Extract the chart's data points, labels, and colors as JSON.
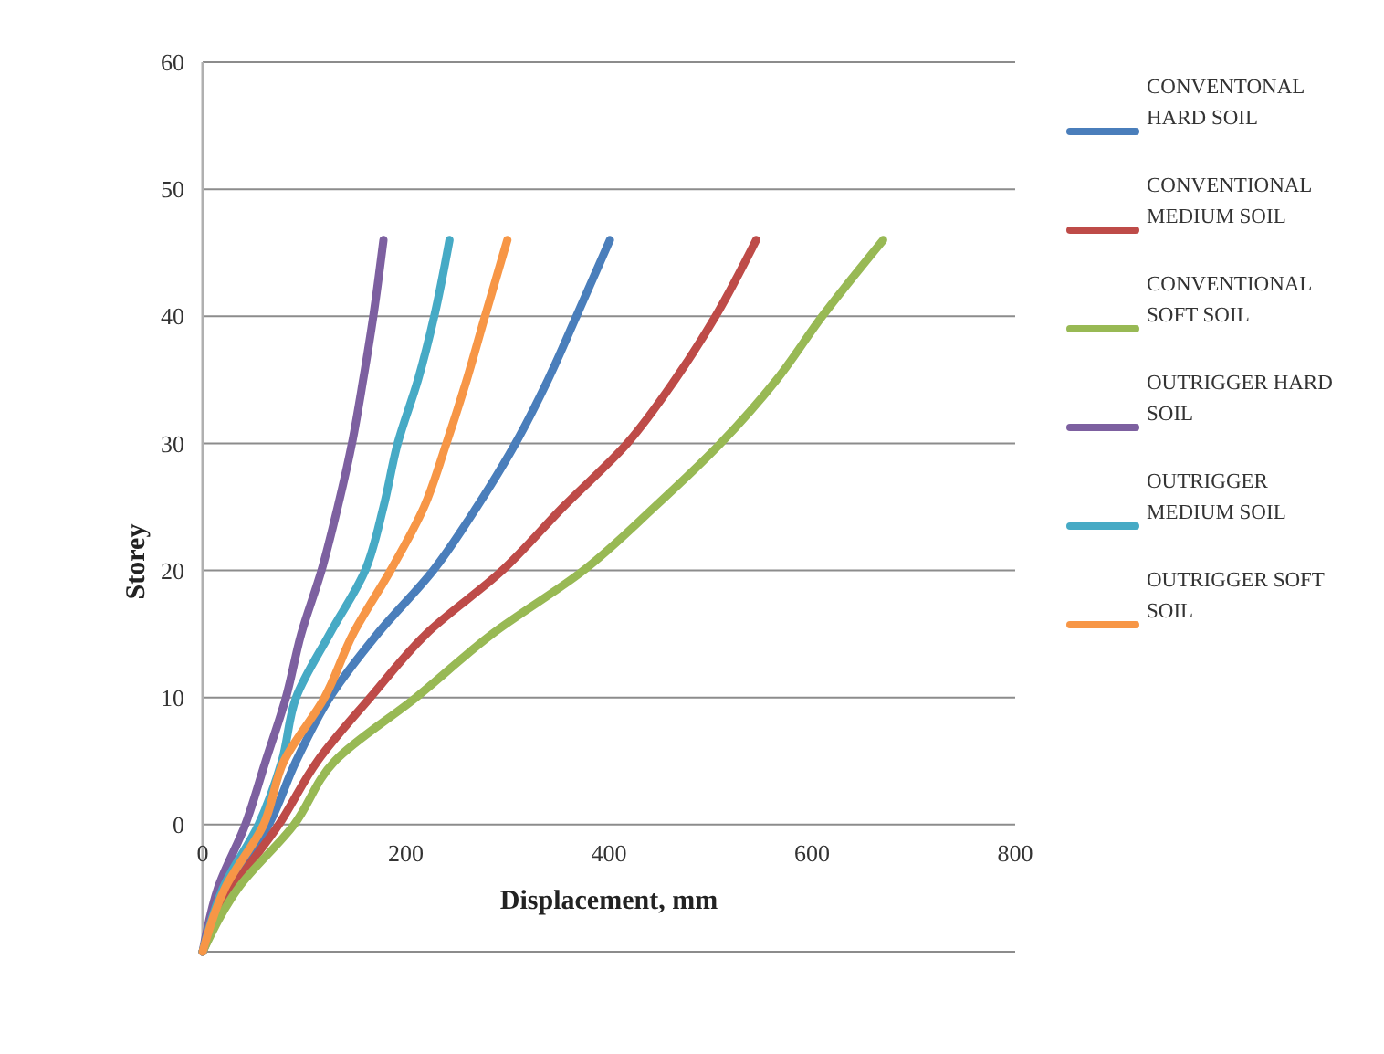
{
  "chart_data": {
    "type": "line",
    "xlabel": "Displacement, mm",
    "ylabel": "Storey",
    "xlim": [
      0,
      800
    ],
    "xticks": [
      0,
      200,
      400,
      600,
      800
    ],
    "ylim": [
      -10,
      60
    ],
    "yticks": [
      {
        "value": -10,
        "label": null
      },
      0,
      10,
      20,
      30,
      40,
      50,
      60
    ],
    "grid": "y",
    "legend": "right",
    "marker": "none",
    "line_style": "solid",
    "series": [
      {
        "name": "CONVENTONAL HARD SOIL",
        "color": "#4a7ebb",
        "x": [
          0,
          25,
          65,
          92,
          125,
          172,
          227,
          270,
          308,
          340,
          368,
          401
        ],
        "values": [
          -10,
          -5,
          0,
          5,
          10,
          15,
          20,
          25,
          30,
          35,
          40,
          46
        ]
      },
      {
        "name": "CONVENTIONAL MEDIUM SOIL",
        "color": "#be4b48",
        "x": [
          0,
          30,
          75,
          113,
          165,
          220,
          295,
          355,
          418,
          465,
          505,
          545
        ],
        "values": [
          -10,
          -5,
          0,
          5,
          10,
          15,
          20,
          25,
          30,
          35,
          40,
          46
        ]
      },
      {
        "name": "CONVENTIONAL SOFT SOIL",
        "color": "#98b954",
        "x": [
          0,
          35,
          90,
          130,
          210,
          285,
          375,
          445,
          510,
          565,
          610,
          670
        ],
        "values": [
          -10,
          -5,
          0,
          5,
          10,
          15,
          20,
          25,
          30,
          35,
          40,
          46
        ]
      },
      {
        "name": "OUTRIGGER HARD SOIL",
        "color": "#7d60a0",
        "x": [
          0,
          15,
          42,
          62,
          82,
          97,
          117,
          133,
          147,
          158,
          168,
          178
        ],
        "values": [
          -10,
          -5,
          0,
          5,
          10,
          15,
          20,
          25,
          30,
          35,
          40,
          46
        ]
      },
      {
        "name": "OUTRIGGER MEDIUM SOIL",
        "color": "#46aac5",
        "x": [
          0,
          20,
          55,
          78,
          92,
          125,
          160,
          178,
          192,
          212,
          228,
          243
        ],
        "values": [
          -10,
          -5,
          0,
          5,
          10,
          15,
          20,
          25,
          30,
          35,
          40,
          46
        ]
      },
      {
        "name": "OUTRIGGER SOFT SOIL",
        "color": "#f79646",
        "x": [
          0,
          22,
          60,
          80,
          120,
          148,
          185,
          218,
          240,
          260,
          278,
          300
        ],
        "values": [
          -10,
          -5,
          0,
          5,
          10,
          15,
          20,
          25,
          30,
          35,
          40,
          46
        ]
      }
    ]
  }
}
